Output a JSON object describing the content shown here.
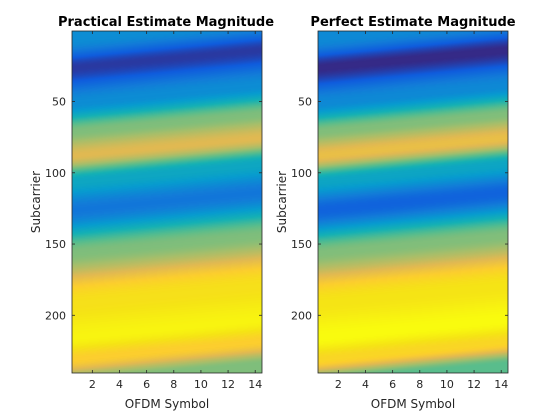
{
  "chart_data": [
    {
      "type": "heatmap",
      "title": "Practical Estimate Magnitude",
      "xlabel": "OFDM Symbol",
      "ylabel": "Subcarrier",
      "xlim": [
        0.5,
        14.5
      ],
      "ylim": [
        0.5,
        240.5
      ],
      "y_reversed": true,
      "xticks": [
        2,
        4,
        6,
        8,
        10,
        12,
        14
      ],
      "yticks": [
        50,
        100,
        150,
        200
      ],
      "colormap": "parula",
      "grid": false,
      "profile_subcarriers": [
        1,
        20,
        45,
        65,
        82,
        100,
        120,
        150,
        185,
        210,
        225,
        240
      ],
      "profile_levels": [
        0.25,
        0.03,
        0.25,
        0.55,
        0.7,
        0.35,
        0.18,
        0.55,
        0.88,
        0.97,
        0.8,
        0.55
      ],
      "symbol_tilt": 0.9,
      "smoothing": "soft"
    },
    {
      "type": "heatmap",
      "title": "Perfect Estimate Magnitude",
      "xlabel": "OFDM Symbol",
      "ylabel": "Subcarrier",
      "xlim": [
        0.5,
        14.5
      ],
      "ylim": [
        0.5,
        240.5
      ],
      "y_reversed": true,
      "xticks": [
        2,
        4,
        6,
        8,
        10,
        12,
        14
      ],
      "yticks": [
        50,
        100,
        150,
        200
      ],
      "colormap": "parula",
      "grid": false,
      "profile_subcarriers": [
        1,
        20,
        45,
        65,
        82,
        100,
        120,
        150,
        185,
        210,
        225,
        240
      ],
      "profile_levels": [
        0.25,
        0.02,
        0.25,
        0.55,
        0.72,
        0.35,
        0.14,
        0.55,
        0.88,
        0.98,
        0.82,
        0.5
      ],
      "symbol_tilt": 0.9,
      "smoothing": "sharp"
    }
  ]
}
